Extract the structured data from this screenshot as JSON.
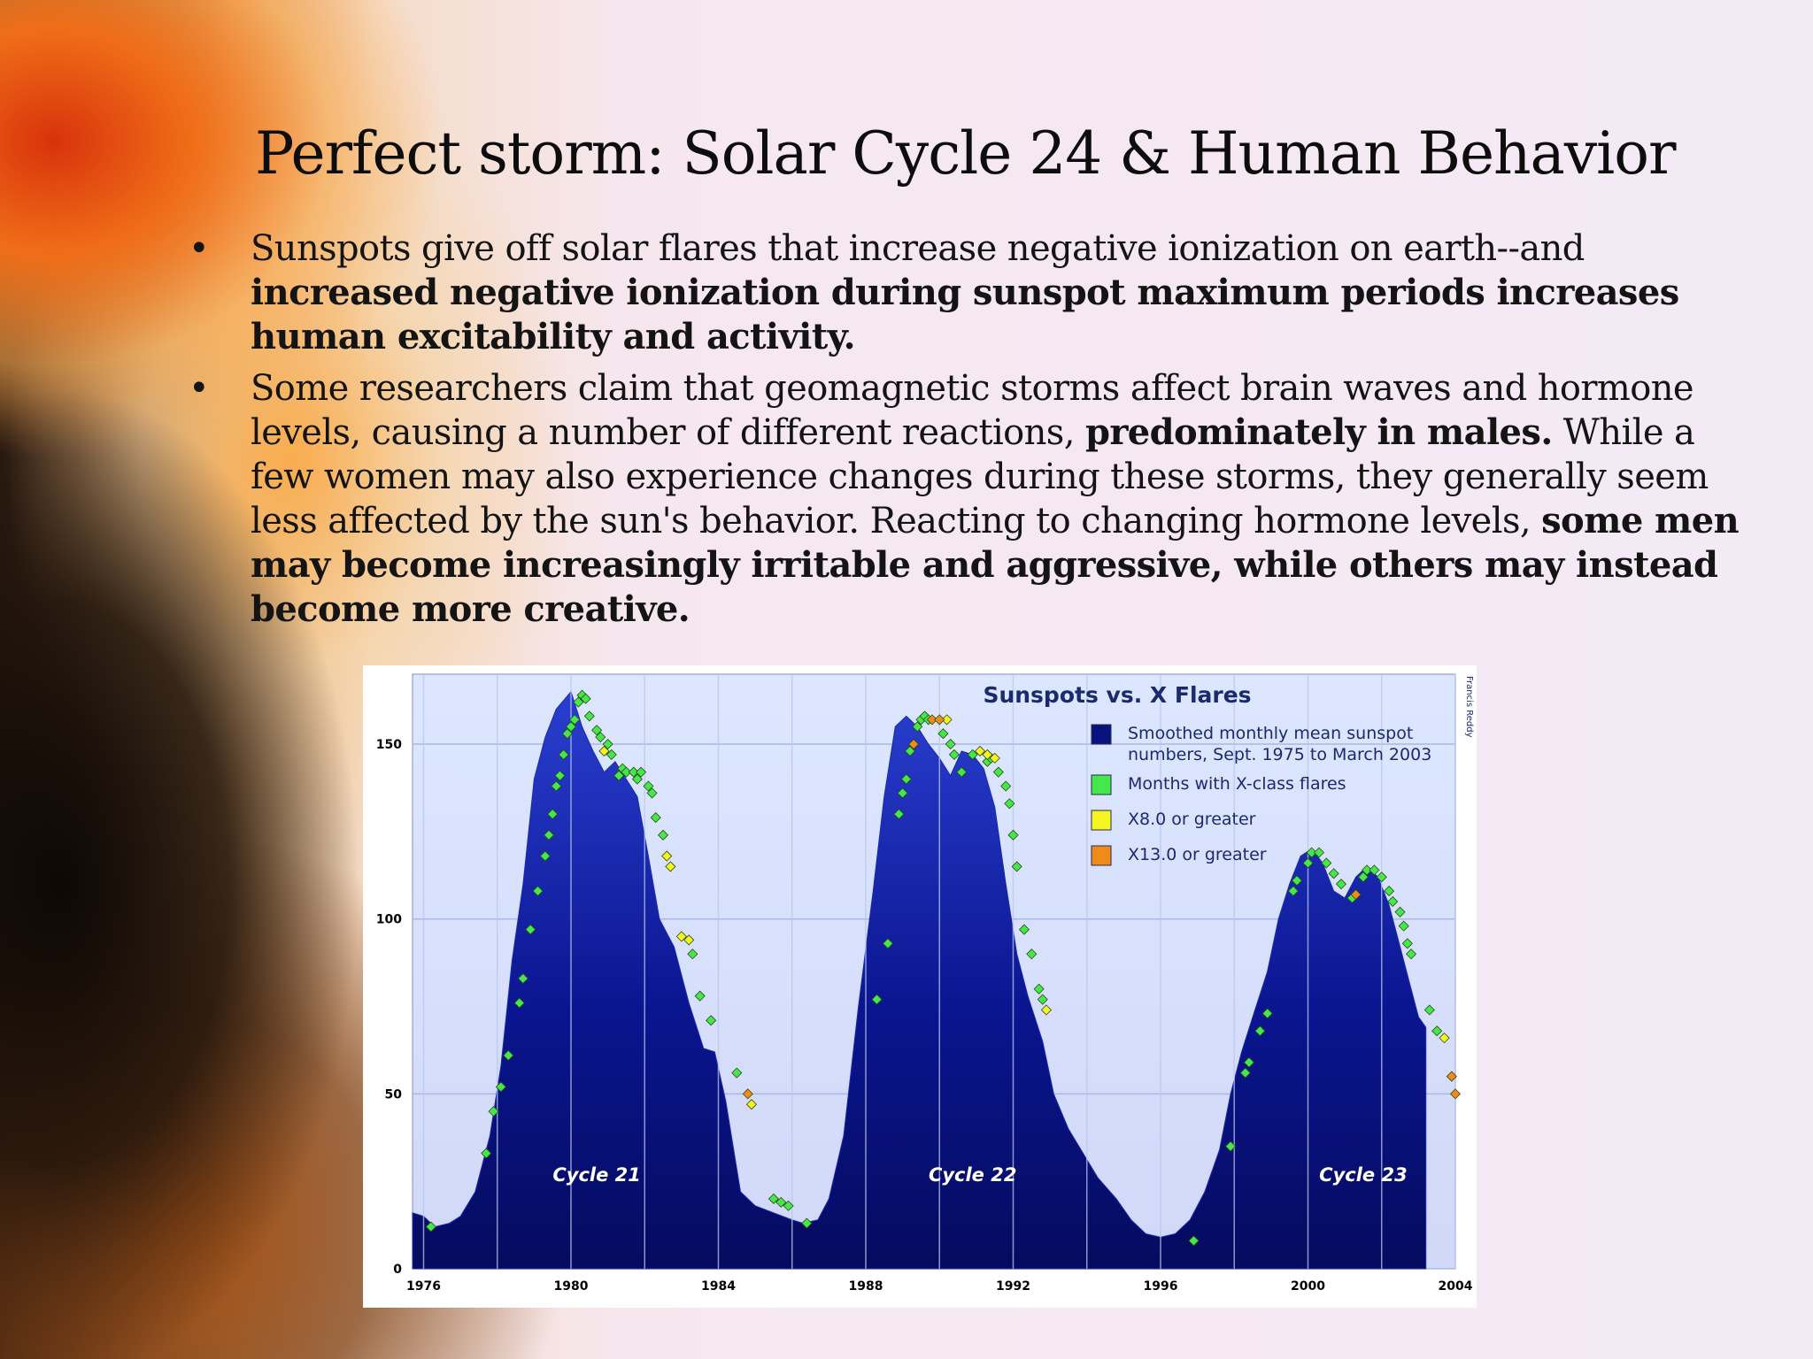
{
  "slide": {
    "title": "Perfect storm: Solar Cycle 24 & Human Behavior",
    "bullets": [
      {
        "marker": "•",
        "parts": [
          {
            "text": "Sunspots give off solar flares that increase negative ionization on earth--and ",
            "bold": false
          },
          {
            "text": "increased negative ionization during sunspot maximum periods increases human excitability and activity.",
            "bold": true
          }
        ]
      },
      {
        "marker": "•",
        "parts": [
          {
            "text": "Some researchers claim that geomagnetic storms affect brain waves and hormone levels, causing a number of different reactions, ",
            "bold": false
          },
          {
            "text": "predominately in males.",
            "bold": true
          },
          {
            "text": " While a few women may also experience changes during these storms, they generally seem less affected by the sun's behavior. Reacting to changing hormone levels, ",
            "bold": false
          },
          {
            "text": "some men may become increasingly irritable and aggressive, while others may instead become more creative.",
            "bold": true
          }
        ]
      }
    ]
  },
  "chart_data": {
    "type": "area",
    "title": "Sunspots vs. X Flares",
    "credit": "Francis Reddy",
    "xlim": [
      1975.7,
      2004
    ],
    "ylim": [
      0,
      170
    ],
    "xticks": [
      "1976",
      "1980",
      "1984",
      "1988",
      "1992",
      "1996",
      "2000",
      "2004"
    ],
    "yticks": [
      "0",
      "50",
      "100",
      "150"
    ],
    "grid": true,
    "legend_position": "top-right",
    "colors": {
      "area": "#08127e",
      "area_top": "#2a3fd0",
      "plot_bg_top": "#dde8ff",
      "plot_bg_bottom": "#cdd7f7",
      "green": "#45e84c",
      "yellow": "#f5f521",
      "orange": "#f08a1a",
      "grid": "#a9b7e6"
    },
    "legend": [
      {
        "label": "Smoothed monthly mean sunspot",
        "label2": "numbers, Sept. 1975 to March 2003",
        "color": "#08127e"
      },
      {
        "label": "Months with X-class flares",
        "label2": "",
        "color": "#45e84c"
      },
      {
        "label": "X8.0 or greater",
        "label2": "",
        "color": "#f5f521"
      },
      {
        "label": "X13.0 or greater",
        "label2": "",
        "color": "#f08a1a"
      }
    ],
    "cycle_labels": [
      {
        "text": "Cycle 21",
        "x": 1980.7,
        "y": 25
      },
      {
        "text": "Cycle 22",
        "x": 1990.9,
        "y": 25
      },
      {
        "text": "Cycle 23",
        "x": 2001.5,
        "y": 25
      }
    ],
    "series": [
      {
        "name": "Smoothed monthly mean sunspot numbers, Sept. 1975 to March 2003",
        "x": [
          1975.7,
          1976.0,
          1976.3,
          1976.7,
          1977.0,
          1977.4,
          1977.8,
          1978.1,
          1978.4,
          1978.7,
          1979.0,
          1979.3,
          1979.6,
          1980.0,
          1980.3,
          1980.6,
          1980.9,
          1981.2,
          1981.5,
          1981.8,
          1982.1,
          1982.4,
          1982.8,
          1983.2,
          1983.6,
          1983.9,
          1984.2,
          1984.6,
          1985.0,
          1985.5,
          1986.0,
          1986.3,
          1986.7,
          1987.0,
          1987.4,
          1987.8,
          1988.2,
          1988.5,
          1988.8,
          1989.1,
          1989.4,
          1989.7,
          1990.0,
          1990.3,
          1990.6,
          1990.9,
          1991.2,
          1991.5,
          1991.8,
          1992.1,
          1992.4,
          1992.8,
          1993.1,
          1993.5,
          1993.9,
          1994.3,
          1994.8,
          1995.2,
          1995.6,
          1996.0,
          1996.4,
          1996.8,
          1997.2,
          1997.6,
          1997.9,
          1998.2,
          1998.5,
          1998.9,
          1999.2,
          1999.5,
          1999.8,
          2000.1,
          2000.4,
          2000.7,
          2001.0,
          2001.3,
          2001.6,
          2001.9,
          2002.2,
          2002.5,
          2002.8,
          2003.0,
          2003.2
        ],
        "values": [
          16,
          15,
          12,
          13,
          15,
          22,
          38,
          58,
          88,
          110,
          140,
          152,
          160,
          165,
          155,
          148,
          142,
          145,
          140,
          135,
          118,
          100,
          92,
          76,
          63,
          62,
          48,
          22,
          18,
          16,
          14,
          13,
          14,
          20,
          38,
          75,
          108,
          135,
          155,
          158,
          155,
          150,
          146,
          141,
          148,
          147,
          143,
          132,
          110,
          90,
          78,
          65,
          50,
          40,
          33,
          26,
          20,
          14,
          10,
          9,
          10,
          14,
          22,
          34,
          50,
          62,
          72,
          85,
          100,
          110,
          118,
          120,
          116,
          108,
          106,
          112,
          115,
          112,
          104,
          92,
          80,
          72,
          69
        ]
      }
    ],
    "flare_markers": {
      "green": [
        {
          "x": 1976.2,
          "y": 12
        },
        {
          "x": 1977.7,
          "y": 33
        },
        {
          "x": 1977.9,
          "y": 45
        },
        {
          "x": 1978.1,
          "y": 52
        },
        {
          "x": 1978.3,
          "y": 61
        },
        {
          "x": 1978.6,
          "y": 76
        },
        {
          "x": 1978.7,
          "y": 83
        },
        {
          "x": 1978.9,
          "y": 97
        },
        {
          "x": 1979.1,
          "y": 108
        },
        {
          "x": 1979.3,
          "y": 118
        },
        {
          "x": 1979.4,
          "y": 124
        },
        {
          "x": 1979.5,
          "y": 130
        },
        {
          "x": 1979.6,
          "y": 138
        },
        {
          "x": 1979.7,
          "y": 141
        },
        {
          "x": 1979.8,
          "y": 147
        },
        {
          "x": 1979.9,
          "y": 153
        },
        {
          "x": 1980.0,
          "y": 155
        },
        {
          "x": 1980.1,
          "y": 157
        },
        {
          "x": 1980.2,
          "y": 162
        },
        {
          "x": 1980.3,
          "y": 164
        },
        {
          "x": 1980.4,
          "y": 163
        },
        {
          "x": 1980.5,
          "y": 158
        },
        {
          "x": 1980.7,
          "y": 154
        },
        {
          "x": 1980.8,
          "y": 152
        },
        {
          "x": 1981.0,
          "y": 150
        },
        {
          "x": 1981.1,
          "y": 147
        },
        {
          "x": 1981.3,
          "y": 141
        },
        {
          "x": 1981.4,
          "y": 143
        },
        {
          "x": 1981.5,
          "y": 142
        },
        {
          "x": 1981.7,
          "y": 142
        },
        {
          "x": 1981.8,
          "y": 140
        },
        {
          "x": 1981.9,
          "y": 142
        },
        {
          "x": 1982.1,
          "y": 138
        },
        {
          "x": 1982.2,
          "y": 136
        },
        {
          "x": 1982.3,
          "y": 129
        },
        {
          "x": 1982.5,
          "y": 124
        },
        {
          "x": 1983.3,
          "y": 90
        },
        {
          "x": 1983.5,
          "y": 78
        },
        {
          "x": 1983.8,
          "y": 71
        },
        {
          "x": 1984.5,
          "y": 56
        },
        {
          "x": 1985.5,
          "y": 20
        },
        {
          "x": 1985.7,
          "y": 19
        },
        {
          "x": 1985.9,
          "y": 18
        },
        {
          "x": 1986.4,
          "y": 13
        },
        {
          "x": 1988.3,
          "y": 77
        },
        {
          "x": 1988.6,
          "y": 93
        },
        {
          "x": 1988.9,
          "y": 130
        },
        {
          "x": 1989.0,
          "y": 136
        },
        {
          "x": 1989.1,
          "y": 140
        },
        {
          "x": 1989.2,
          "y": 148
        },
        {
          "x": 1989.3,
          "y": 150
        },
        {
          "x": 1989.4,
          "y": 155
        },
        {
          "x": 1989.5,
          "y": 157
        },
        {
          "x": 1989.6,
          "y": 158
        },
        {
          "x": 1989.7,
          "y": 157
        },
        {
          "x": 1990.1,
          "y": 153
        },
        {
          "x": 1990.3,
          "y": 150
        },
        {
          "x": 1990.4,
          "y": 147
        },
        {
          "x": 1990.6,
          "y": 142
        },
        {
          "x": 1990.9,
          "y": 147
        },
        {
          "x": 1991.3,
          "y": 145
        },
        {
          "x": 1991.4,
          "y": 146
        },
        {
          "x": 1991.6,
          "y": 142
        },
        {
          "x": 1991.8,
          "y": 138
        },
        {
          "x": 1991.9,
          "y": 133
        },
        {
          "x": 1992.0,
          "y": 124
        },
        {
          "x": 1992.1,
          "y": 115
        },
        {
          "x": 1992.3,
          "y": 97
        },
        {
          "x": 1992.5,
          "y": 90
        },
        {
          "x": 1992.7,
          "y": 80
        },
        {
          "x": 1992.8,
          "y": 77
        },
        {
          "x": 1996.9,
          "y": 8
        },
        {
          "x": 1997.9,
          "y": 35
        },
        {
          "x": 1998.3,
          "y": 56
        },
        {
          "x": 1998.4,
          "y": 59
        },
        {
          "x": 1998.7,
          "y": 68
        },
        {
          "x": 1998.9,
          "y": 73
        },
        {
          "x": 1999.6,
          "y": 108
        },
        {
          "x": 1999.7,
          "y": 111
        },
        {
          "x": 2000.0,
          "y": 116
        },
        {
          "x": 2000.1,
          "y": 119
        },
        {
          "x": 2000.3,
          "y": 119
        },
        {
          "x": 2000.5,
          "y": 116
        },
        {
          "x": 2000.7,
          "y": 113
        },
        {
          "x": 2000.9,
          "y": 110
        },
        {
          "x": 2001.2,
          "y": 106
        },
        {
          "x": 2001.5,
          "y": 112
        },
        {
          "x": 2001.6,
          "y": 114
        },
        {
          "x": 2001.8,
          "y": 114
        },
        {
          "x": 2002.0,
          "y": 112
        },
        {
          "x": 2002.2,
          "y": 108
        },
        {
          "x": 2002.3,
          "y": 105
        },
        {
          "x": 2002.5,
          "y": 102
        },
        {
          "x": 2002.6,
          "y": 98
        },
        {
          "x": 2002.7,
          "y": 93
        },
        {
          "x": 2002.8,
          "y": 90
        },
        {
          "x": 2003.3,
          "y": 74
        },
        {
          "x": 2003.5,
          "y": 68
        }
      ],
      "yellow": [
        {
          "x": 1980.9,
          "y": 148
        },
        {
          "x": 1982.6,
          "y": 118
        },
        {
          "x": 1982.7,
          "y": 115
        },
        {
          "x": 1983.0,
          "y": 95
        },
        {
          "x": 1983.2,
          "y": 94
        },
        {
          "x": 1984.9,
          "y": 47
        },
        {
          "x": 1990.2,
          "y": 157
        },
        {
          "x": 1991.1,
          "y": 148
        },
        {
          "x": 1991.3,
          "y": 147
        },
        {
          "x": 1991.5,
          "y": 146
        },
        {
          "x": 1992.9,
          "y": 74
        },
        {
          "x": 2003.7,
          "y": 66
        }
      ],
      "orange": [
        {
          "x": 1984.8,
          "y": 50
        },
        {
          "x": 1989.3,
          "y": 150
        },
        {
          "x": 1989.8,
          "y": 157
        },
        {
          "x": 1990.0,
          "y": 157
        },
        {
          "x": 2001.3,
          "y": 107
        },
        {
          "x": 2003.9,
          "y": 55
        },
        {
          "x": 2004.0,
          "y": 50
        }
      ]
    }
  }
}
